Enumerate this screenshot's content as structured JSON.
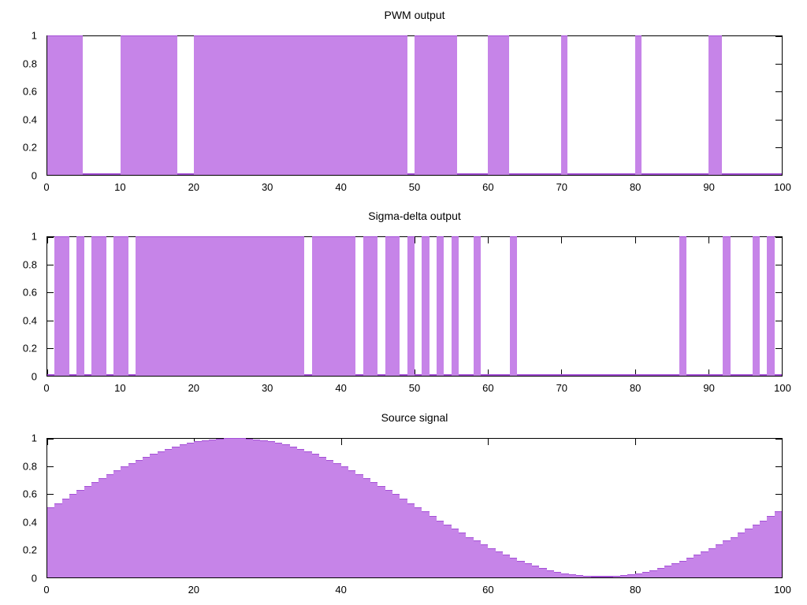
{
  "page": {
    "background": "#ffffff"
  },
  "colors": {
    "fill": "#c684e8",
    "line": "#a44fd6",
    "axis": "#000000",
    "text": "#000000"
  },
  "chart_data": [
    {
      "id": "pwm",
      "type": "bar",
      "title": "PWM output",
      "xlabel": "",
      "ylabel": "",
      "xlim": [
        0,
        100
      ],
      "ylim": [
        0,
        1
      ],
      "grid": false,
      "legend": "none",
      "xticks": {
        "values": [
          0,
          10,
          20,
          30,
          40,
          50,
          60,
          70,
          80,
          90,
          100
        ],
        "labels": [
          "0",
          "10",
          "20",
          "30",
          "40",
          "50",
          "60",
          "70",
          "80",
          "90",
          "100"
        ]
      },
      "yticks": {
        "values": [
          0,
          0.2,
          0.4,
          0.6,
          0.8,
          1
        ],
        "labels": [
          "0",
          "0.2",
          "0.4",
          "0.6",
          "0.8",
          "1"
        ]
      },
      "on_intervals": [
        [
          0,
          4.8
        ],
        [
          10,
          17.7
        ],
        [
          20,
          49
        ],
        [
          50,
          55.8
        ],
        [
          60,
          62.9
        ],
        [
          70,
          70.8
        ],
        [
          80,
          80.9
        ],
        [
          90,
          91.8
        ]
      ]
    },
    {
      "id": "sigma-delta",
      "type": "bar",
      "title": "Sigma-delta output",
      "xlabel": "",
      "ylabel": "",
      "xlim": [
        0,
        100
      ],
      "ylim": [
        0,
        1
      ],
      "grid": false,
      "legend": "none",
      "xticks": {
        "values": [
          0,
          10,
          20,
          30,
          40,
          50,
          60,
          70,
          80,
          90,
          100
        ],
        "labels": [
          "0",
          "10",
          "20",
          "30",
          "40",
          "50",
          "60",
          "70",
          "80",
          "90",
          "100"
        ]
      },
      "yticks": {
        "values": [
          0,
          0.2,
          0.4,
          0.6,
          0.8,
          1
        ],
        "labels": [
          "0",
          "0.2",
          "0.4",
          "0.6",
          "0.8",
          "1"
        ]
      },
      "on_samples": [
        1,
        2,
        4,
        6,
        7,
        9,
        10,
        12,
        13,
        14,
        15,
        16,
        17,
        18,
        19,
        20,
        21,
        22,
        23,
        24,
        25,
        26,
        27,
        28,
        29,
        30,
        31,
        32,
        33,
        34,
        36,
        37,
        38,
        39,
        40,
        41,
        43,
        44,
        46,
        47,
        49,
        51,
        53,
        55,
        58,
        63,
        86,
        92,
        96,
        98
      ]
    },
    {
      "id": "source",
      "type": "bar",
      "title": "Source signal",
      "xlabel": "",
      "ylabel": "",
      "xlim": [
        0,
        100
      ],
      "ylim": [
        0,
        1
      ],
      "grid": false,
      "legend": "none",
      "xticks": {
        "values": [
          0,
          20,
          40,
          60,
          80,
          100
        ],
        "labels": [
          "0",
          "20",
          "40",
          "60",
          "80",
          "100"
        ]
      },
      "yticks": {
        "values": [
          0,
          0.2,
          0.4,
          0.6,
          0.8,
          1
        ],
        "labels": [
          "0",
          "0.2",
          "0.4",
          "0.6",
          "0.8",
          "1"
        ]
      },
      "values": [
        0.5,
        0.531,
        0.563,
        0.594,
        0.624,
        0.655,
        0.684,
        0.713,
        0.741,
        0.768,
        0.794,
        0.819,
        0.842,
        0.865,
        0.885,
        0.905,
        0.922,
        0.938,
        0.952,
        0.965,
        0.976,
        0.984,
        0.991,
        0.996,
        0.999,
        1.0,
        0.999,
        0.996,
        0.991,
        0.984,
        0.976,
        0.965,
        0.952,
        0.938,
        0.922,
        0.905,
        0.885,
        0.865,
        0.842,
        0.819,
        0.794,
        0.768,
        0.741,
        0.713,
        0.684,
        0.655,
        0.624,
        0.594,
        0.563,
        0.531,
        0.5,
        0.469,
        0.437,
        0.406,
        0.376,
        0.345,
        0.316,
        0.287,
        0.259,
        0.232,
        0.206,
        0.181,
        0.158,
        0.135,
        0.115,
        0.095,
        0.078,
        0.062,
        0.048,
        0.035,
        0.024,
        0.016,
        0.009,
        0.004,
        0.001,
        0.0,
        0.001,
        0.004,
        0.009,
        0.016,
        0.024,
        0.035,
        0.048,
        0.062,
        0.078,
        0.095,
        0.115,
        0.135,
        0.158,
        0.181,
        0.206,
        0.232,
        0.259,
        0.287,
        0.316,
        0.345,
        0.376,
        0.406,
        0.437,
        0.469
      ]
    }
  ]
}
